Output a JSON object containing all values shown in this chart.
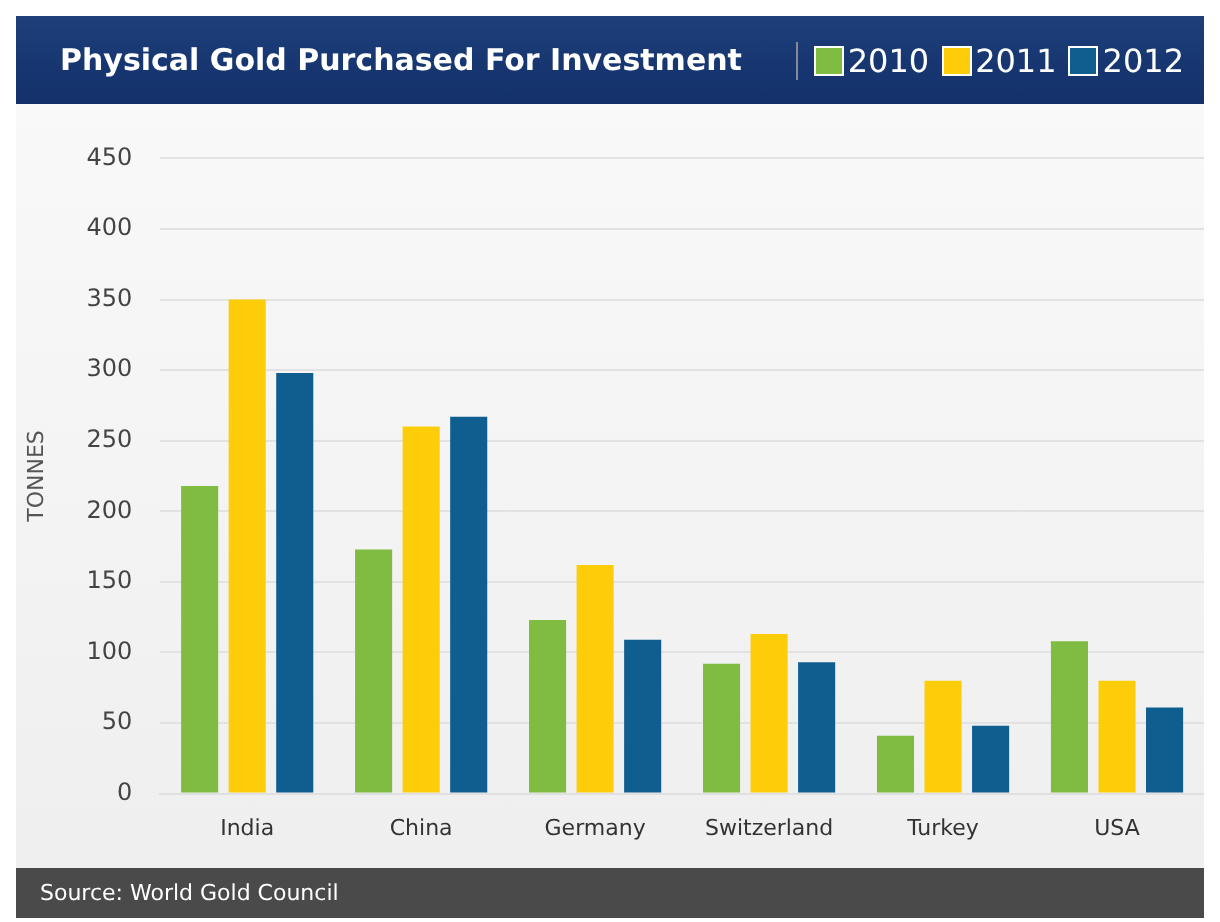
{
  "chart_data": {
    "type": "bar",
    "title": "Physical Gold Purchased For Investment",
    "ylabel": "TONNES",
    "categories": [
      "India",
      "China",
      "Germany",
      "Switzerland",
      "Turkey",
      "USA"
    ],
    "series": [
      {
        "name": "2010",
        "color": "#80bc41",
        "values": [
          218,
          173,
          123,
          92,
          41,
          108
        ]
      },
      {
        "name": "2011",
        "color": "#fdcd0a",
        "values": [
          350,
          260,
          162,
          113,
          80,
          80
        ]
      },
      {
        "name": "2012",
        "color": "#0f5e8f",
        "values": [
          298,
          267,
          109,
          93,
          48,
          61
        ]
      }
    ],
    "ylim": [
      0,
      450
    ],
    "yticks": [
      0,
      50,
      100,
      150,
      200,
      250,
      300,
      350,
      400,
      450
    ],
    "grid": "y",
    "legend": "top right",
    "annotations": [
      "Source: World Gold Council"
    ]
  }
}
